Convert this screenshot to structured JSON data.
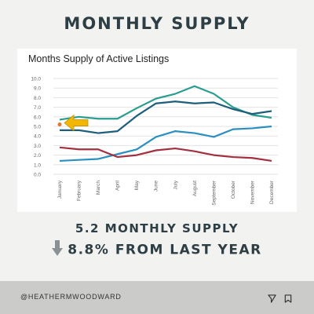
{
  "header": {
    "title": "MONTHLY SUPPLY"
  },
  "summary": {
    "supply_text": "5.2 MONTHLY SUPPLY",
    "change_text": "8.8% FROM LAST YEAR",
    "arrow_icon": "down-arrow-icon"
  },
  "footer": {
    "handle": "@HEATHERMWOODWARD",
    "icons": [
      "send-icon",
      "bookmark-icon"
    ]
  },
  "chart_data": {
    "type": "line",
    "title": "Months Supply of Active Listings",
    "xlabel": "",
    "ylabel": "",
    "ylim": [
      0,
      10
    ],
    "y_ticks": [
      "0.0",
      "1.0",
      "2.0",
      "3.0",
      "4.0",
      "5.0",
      "6.0",
      "7.0",
      "8.0",
      "9.0",
      "10.0"
    ],
    "categories": [
      "January",
      "February",
      "March",
      "April",
      "May",
      "June",
      "July",
      "August",
      "September",
      "October",
      "November",
      "December"
    ],
    "grid": true,
    "series": [
      {
        "color": "#2a9d8f",
        "values": [
          5.7,
          6.0,
          5.8,
          5.8,
          6.9,
          7.9,
          8.4,
          9.2,
          8.4,
          7.0,
          6.2,
          5.9
        ]
      },
      {
        "color": "#1d5f7a",
        "values": [
          4.6,
          4.6,
          4.3,
          4.5,
          6.1,
          7.4,
          7.6,
          7.4,
          7.5,
          6.8,
          6.3,
          6.6
        ]
      },
      {
        "color": "#2b8fc0",
        "values": [
          1.4,
          1.5,
          1.6,
          2.1,
          2.6,
          3.9,
          4.5,
          4.3,
          3.9,
          4.7,
          4.8,
          5.0
        ]
      },
      {
        "color": "#a33040",
        "values": [
          2.8,
          2.6,
          2.6,
          1.8,
          2.0,
          2.5,
          2.7,
          2.4,
          2.0,
          1.8,
          1.7,
          1.4
        ]
      }
    ],
    "highlight": {
      "category": "January",
      "value": 5.2,
      "color": "#f2b705",
      "marker_color": "#e07a2f"
    }
  }
}
